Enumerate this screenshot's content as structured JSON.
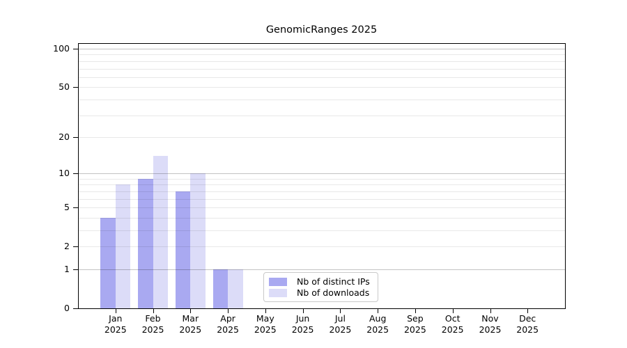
{
  "chart_data": {
    "type": "bar",
    "title": "GenomicRanges 2025",
    "categories": [
      "Jan",
      "Feb",
      "Mar",
      "Apr",
      "May",
      "Jun",
      "Jul",
      "Aug",
      "Sep",
      "Oct",
      "Nov",
      "Dec"
    ],
    "x_year_label": "2025",
    "series": [
      {
        "name": "Nb of distinct IPs",
        "color": "#a9a9f1",
        "values": [
          4,
          9,
          7,
          1,
          0,
          0,
          0,
          0,
          0,
          0,
          0,
          0
        ]
      },
      {
        "name": "Nb of downloads",
        "color": "#dcdcf8",
        "values": [
          8,
          14,
          10,
          1,
          0,
          0,
          0,
          0,
          0,
          0,
          0,
          0
        ]
      }
    ],
    "y_axis": {
      "scale": "log1p",
      "tick_labels": [
        0,
        1,
        2,
        5,
        10,
        20,
        50,
        100
      ],
      "major_grid_values": [
        1,
        10,
        100
      ],
      "minor_grid_values": [
        2,
        3,
        4,
        5,
        6,
        7,
        8,
        9,
        20,
        30,
        40,
        50,
        60,
        70,
        80,
        90
      ],
      "ylim": [
        0,
        110
      ]
    },
    "legend": {
      "position": "lower-center-inside",
      "entries": [
        "Nb of distinct IPs",
        "Nb of downloads"
      ]
    },
    "colors": {
      "bar_distinct_ips": "#a9a9f1",
      "bar_downloads": "#dcdcf8",
      "major_grid": "#c3c3c3",
      "minor_grid": "#e8e8e8",
      "axis": "#000000",
      "text": "#000000",
      "background": "#ffffff"
    }
  }
}
